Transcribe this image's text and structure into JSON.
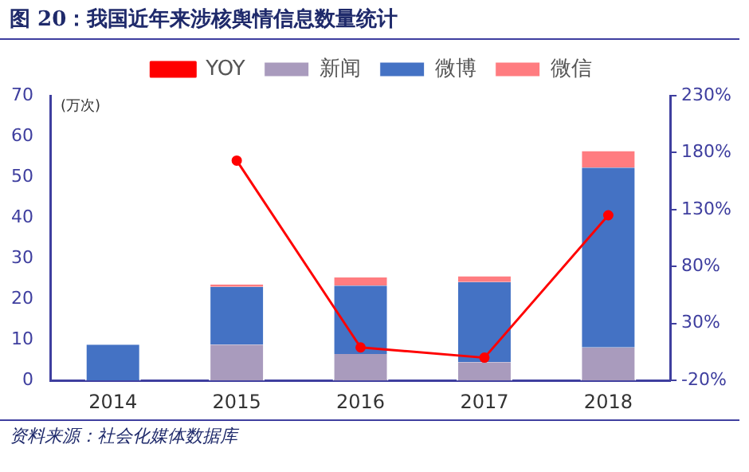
{
  "chart_data": {
    "type": "bar",
    "title": "图 20：我国近年来涉核舆情信息数量统计",
    "ylabel": "(万次)",
    "annotations": [
      "资料来源：社会化媒体数据库"
    ],
    "categories": [
      "2014",
      "2015",
      "2016",
      "2017",
      "2018"
    ],
    "stacked": true,
    "legend": "top",
    "grid": false,
    "marker": "circle",
    "series": [
      {
        "name": "新闻",
        "color": "#a99bbd",
        "values": [
          0,
          8.8,
          6.5,
          4.5,
          8.1
        ]
      },
      {
        "name": "微博",
        "color": "#4472c4",
        "values": [
          8.8,
          14.2,
          16.8,
          19.7,
          44.2
        ]
      },
      {
        "name": "微信",
        "color": "#ff7c80",
        "values": [
          0,
          0.6,
          2.0,
          1.4,
          4.1
        ]
      },
      {
        "name": "YOY",
        "type": "line",
        "axis": "y2",
        "color": "#ff0000",
        "values": [
          null,
          173,
          9,
          0,
          125
        ]
      }
    ],
    "ylim": [
      0,
      70
    ],
    "yticks": [
      0,
      10,
      20,
      30,
      40,
      50,
      60,
      70
    ],
    "y2lim": [
      -20,
      230
    ],
    "y2ticks": [
      {
        "value": -20,
        "label": "-20%"
      },
      {
        "value": 30,
        "label": "30%"
      },
      {
        "value": 80,
        "label": "80%"
      },
      {
        "value": 130,
        "label": "130%"
      },
      {
        "value": 180,
        "label": "180%"
      },
      {
        "value": 230,
        "label": "230%"
      }
    ]
  }
}
